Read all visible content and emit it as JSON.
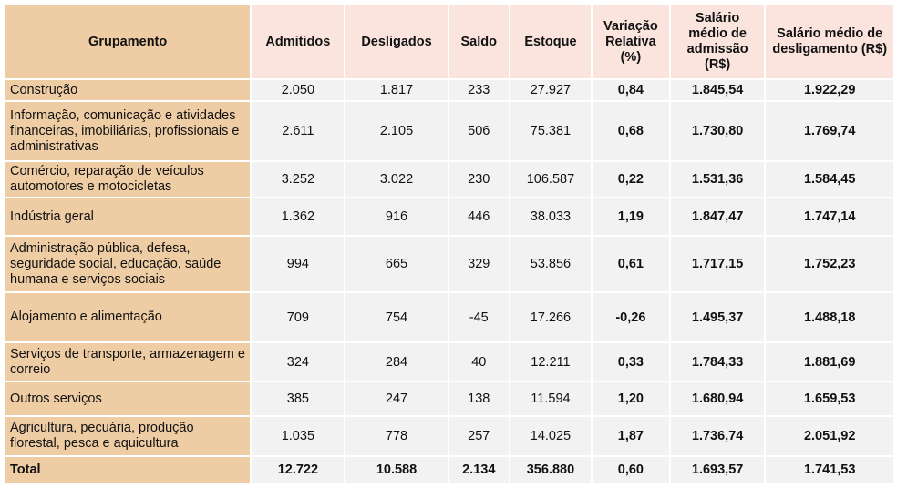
{
  "headers": [
    "Grupamento",
    "Admitidos",
    "Desligados",
    "Saldo",
    "Estoque",
    "Variação Relativa (%)",
    "Salário médio de admissão (R$)",
    "Salário médio de desligamento (R$)"
  ],
  "rows": [
    [
      "Construção",
      "2.050",
      "1.817",
      "233",
      "27.927",
      "0,84",
      "1.845,54",
      "1.922,29"
    ],
    [
      "Informação, comunicação e atividades financeiras, imobiliárias, profissionais e administrativas",
      "2.611",
      "2.105",
      "506",
      "75.381",
      "0,68",
      "1.730,80",
      "1.769,74"
    ],
    [
      "Comércio, reparação de veículos automotores e motocicletas",
      "3.252",
      "3.022",
      "230",
      "106.587",
      "0,22",
      "1.531,36",
      "1.584,45"
    ],
    [
      "Indústria geral",
      "1.362",
      "916",
      "446",
      "38.033",
      "1,19",
      "1.847,47",
      "1.747,14"
    ],
    [
      "Administração pública, defesa, seguridade social, educação, saúde humana e serviços sociais",
      "994",
      "665",
      "329",
      "53.856",
      "0,61",
      "1.717,15",
      "1.752,23"
    ],
    [
      "Alojamento e alimentação",
      "709",
      "754",
      "-45",
      "17.266",
      "-0,26",
      "1.495,37",
      "1.488,18"
    ],
    [
      "Serviços de transporte, armazenagem e correio",
      "324",
      "284",
      "40",
      "12.211",
      "0,33",
      "1.784,33",
      "1.881,69"
    ],
    [
      "Outros serviços",
      "385",
      "247",
      "138",
      "11.594",
      "1,20",
      "1.680,94",
      "1.659,53"
    ],
    [
      "Agricultura, pecuária, produção florestal, pesca e aquicultura",
      "1.035",
      "778",
      "257",
      "14.025",
      "1,87",
      "1.736,74",
      "2.051,92"
    ],
    [
      "Total",
      "12.722",
      "10.588",
      "2.134",
      "356.880",
      "0,60",
      "1.693,57",
      "1.741,53"
    ]
  ]
}
